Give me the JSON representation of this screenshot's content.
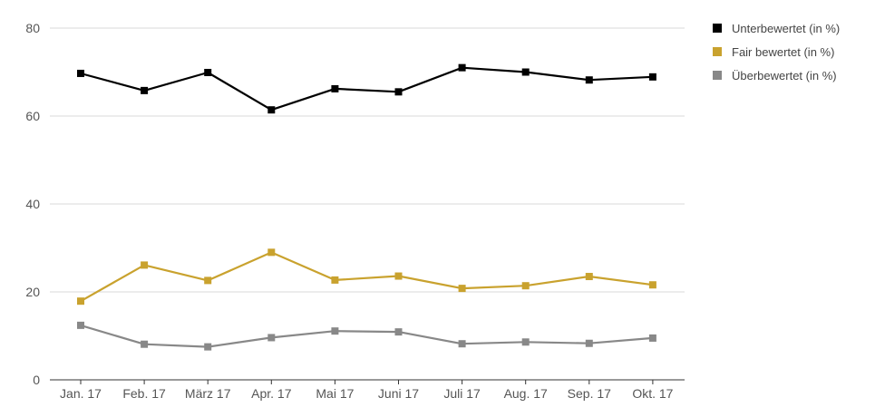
{
  "chart_data": {
    "type": "line",
    "categories": [
      "Jan. 17",
      "Feb. 17",
      "März 17",
      "Apr. 17",
      "Mai 17",
      "Juni 17",
      "Juli 17",
      "Aug. 17",
      "Sep. 17",
      "Okt. 17"
    ],
    "series": [
      {
        "name": "Unterbewertet (in %)",
        "color": "#000000",
        "values": [
          69.7,
          65.8,
          69.9,
          61.4,
          66.2,
          65.5,
          71.0,
          70.0,
          68.2,
          68.9
        ]
      },
      {
        "name": "Fair bewertet (in %)",
        "color": "#c9a22e",
        "values": [
          17.9,
          26.1,
          22.6,
          29.0,
          22.7,
          23.6,
          20.8,
          21.4,
          23.5,
          21.6
        ]
      },
      {
        "name": "Überbewertet (in %)",
        "color": "#888888",
        "values": [
          12.4,
          8.1,
          7.5,
          9.6,
          11.1,
          10.9,
          8.2,
          8.6,
          8.3,
          9.5
        ]
      }
    ],
    "ylim": [
      0,
      80
    ],
    "yticks": [
      0,
      20,
      40,
      60,
      80
    ],
    "grid": true,
    "legend": "right",
    "title": "",
    "xlabel": "",
    "ylabel": ""
  }
}
